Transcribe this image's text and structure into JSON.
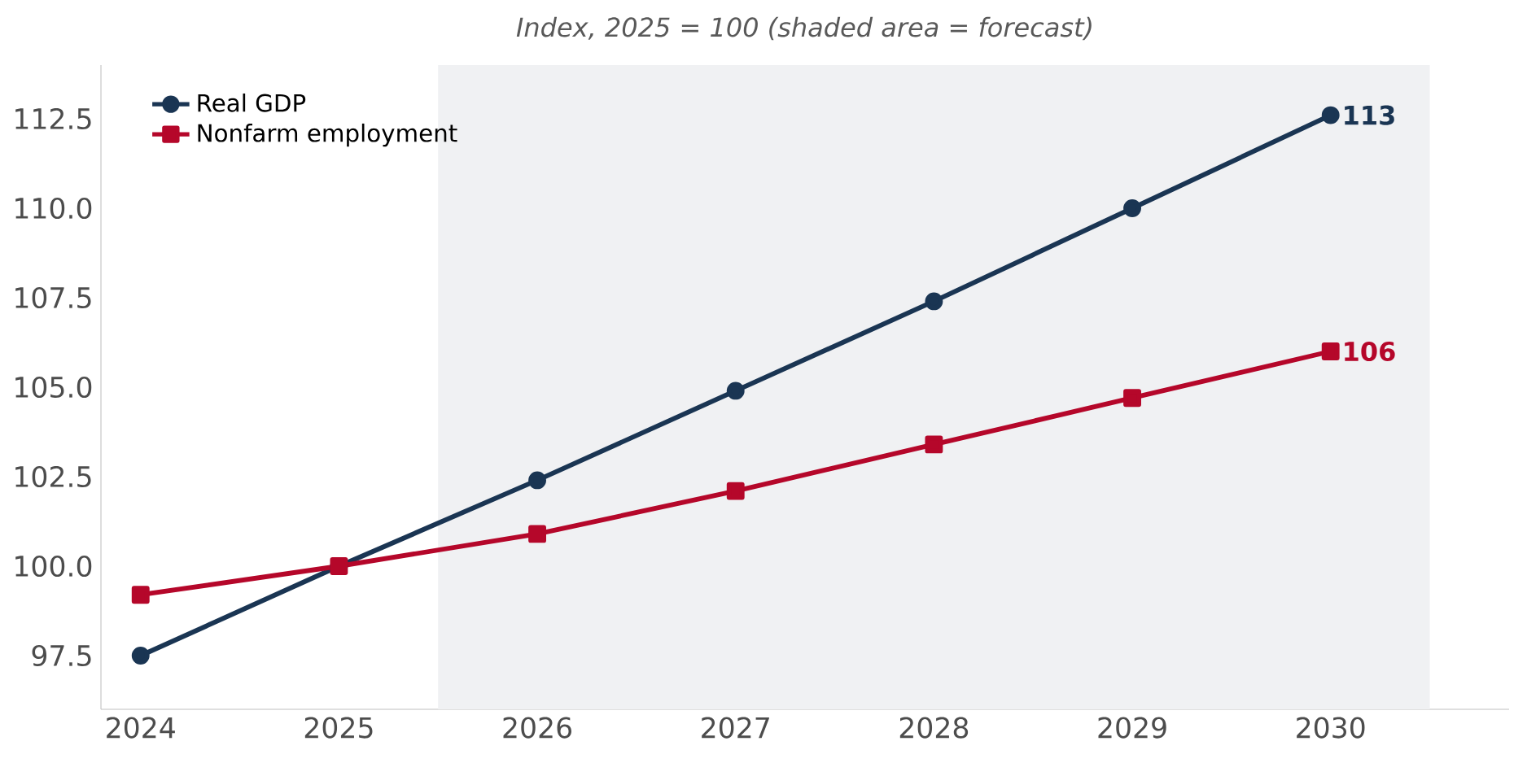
{
  "chart_data": {
    "type": "line",
    "title": "Index, 2025 = 100  (shaded area = forecast)",
    "x": [
      2024,
      2025,
      2026,
      2027,
      2028,
      2029,
      2030
    ],
    "series": [
      {
        "name": "Real GDP",
        "color": "#1a3553",
        "marker": "circle",
        "values": [
          97.5,
          100,
          102.4,
          104.9,
          107.4,
          110.0,
          112.6
        ],
        "value_labels": [
          null,
          null,
          null,
          null,
          null,
          null,
          "113"
        ]
      },
      {
        "name": "Nonfarm employment",
        "color": "#b5072a",
        "marker": "square",
        "values": [
          99.2,
          100,
          100.9,
          102.1,
          103.4,
          104.7,
          106.0
        ],
        "value_labels": [
          null,
          null,
          null,
          null,
          null,
          null,
          "106"
        ]
      }
    ],
    "xlim": [
      2023.8,
      2030.9
    ],
    "ylim": [
      96,
      114
    ],
    "xticks": [
      2024,
      2025,
      2026,
      2027,
      2028,
      2029,
      2030
    ],
    "yticks": [
      {
        "value": 97.5,
        "label": "97.5"
      },
      {
        "value": 100,
        "label": "100.0"
      },
      {
        "value": 102.5,
        "label": "102.5"
      },
      {
        "value": 105,
        "label": "105.0"
      },
      {
        "value": 107.5,
        "label": "107.5"
      },
      {
        "value": 110,
        "label": "110.0"
      },
      {
        "value": 112.5,
        "label": "112.5"
      }
    ],
    "bands": [
      {
        "axis": "x",
        "from": 2025.5,
        "to": 2030.5,
        "color": "#f0f1f3"
      }
    ],
    "legend": "top left",
    "grid": false,
    "line_style": "solid"
  }
}
